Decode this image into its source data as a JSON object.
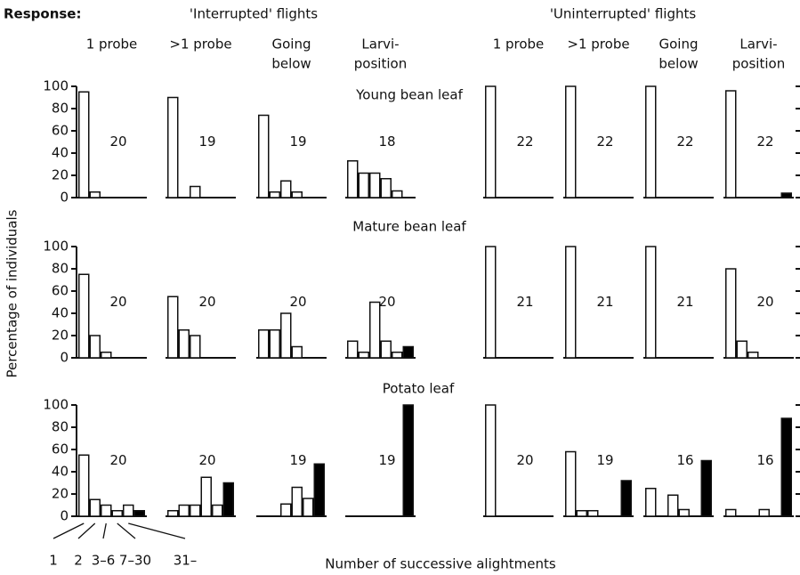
{
  "response_label": "Response:",
  "groups": [
    {
      "title": "'Interrupted' flights",
      "columns": [
        [
          "1 probe"
        ],
        [
          ">1 probe"
        ],
        [
          "Going",
          "below"
        ],
        [
          "Larvi-",
          "position"
        ]
      ]
    },
    {
      "title": "'Uninterrupted' flights",
      "columns": [
        [
          "1 probe"
        ],
        [
          ">1 probe"
        ],
        [
          "Going",
          "below"
        ],
        [
          "Larvi-",
          "position"
        ]
      ]
    }
  ],
  "y_label": "Percentage of individuals",
  "x_label": "Number of successive alightments",
  "categories": [
    "1",
    "2",
    "3–6",
    "7–30",
    "31–",
    null
  ],
  "bar_colors": [
    "#ffffff",
    "#ffffff",
    "#ffffff",
    "#ffffff",
    "#ffffff",
    "#000000"
  ],
  "chart_data": [
    {
      "type": "bar",
      "title": "Young bean leaf",
      "ylim": [
        0,
        100
      ],
      "yticks": [
        0,
        20,
        40,
        60,
        80,
        100
      ],
      "panels": [
        {
          "values": [
            95,
            5,
            0,
            0,
            0,
            0
          ],
          "n": 20
        },
        {
          "values": [
            90,
            0,
            10,
            0,
            0,
            0
          ],
          "n": 19
        },
        {
          "values": [
            74,
            5,
            15,
            5,
            0,
            0
          ],
          "n": 19
        },
        {
          "values": [
            33,
            22,
            22,
            17,
            6,
            0
          ],
          "n": 18
        },
        {
          "values": [
            100,
            0,
            0,
            0,
            0,
            0
          ],
          "n": 22
        },
        {
          "values": [
            100,
            0,
            0,
            0,
            0,
            0
          ],
          "n": 22
        },
        {
          "values": [
            100,
            0,
            0,
            0,
            0,
            0
          ],
          "n": 22
        },
        {
          "values": [
            96,
            0,
            0,
            0,
            0,
            4
          ],
          "n": 22
        }
      ]
    },
    {
      "type": "bar",
      "title": "Mature bean leaf",
      "ylim": [
        0,
        100
      ],
      "yticks": [
        0,
        20,
        40,
        60,
        80,
        100
      ],
      "panels": [
        {
          "values": [
            75,
            20,
            5,
            0,
            0,
            0
          ],
          "n": 20
        },
        {
          "values": [
            55,
            25,
            20,
            0,
            0,
            0
          ],
          "n": 20
        },
        {
          "values": [
            25,
            25,
            40,
            10,
            0,
            0
          ],
          "n": 20
        },
        {
          "values": [
            15,
            5,
            50,
            15,
            5,
            10
          ],
          "n": 20
        },
        {
          "values": [
            100,
            0,
            0,
            0,
            0,
            0
          ],
          "n": 21
        },
        {
          "values": [
            100,
            0,
            0,
            0,
            0,
            0
          ],
          "n": 21
        },
        {
          "values": [
            100,
            0,
            0,
            0,
            0,
            0
          ],
          "n": 21
        },
        {
          "values": [
            80,
            15,
            5,
            0,
            0,
            0
          ],
          "n": 20
        }
      ]
    },
    {
      "type": "bar",
      "title": "Potato leaf",
      "ylim": [
        0,
        100
      ],
      "yticks": [
        0,
        20,
        40,
        60,
        80,
        100
      ],
      "panels": [
        {
          "values": [
            55,
            15,
            10,
            5,
            10,
            5
          ],
          "n": 20
        },
        {
          "values": [
            5,
            10,
            10,
            35,
            10,
            30
          ],
          "n": 20
        },
        {
          "values": [
            0,
            0,
            11,
            26,
            16,
            47
          ],
          "n": 19
        },
        {
          "values": [
            0,
            0,
            0,
            0,
            0,
            100
          ],
          "n": 19
        },
        {
          "values": [
            100,
            0,
            0,
            0,
            0,
            0
          ],
          "n": 20
        },
        {
          "values": [
            58,
            5,
            5,
            0,
            0,
            32
          ],
          "n": 19
        },
        {
          "values": [
            25,
            0,
            19,
            6,
            0,
            50
          ],
          "n": 16
        },
        {
          "values": [
            6,
            0,
            0,
            6,
            0,
            88
          ],
          "n": 16
        }
      ]
    }
  ]
}
